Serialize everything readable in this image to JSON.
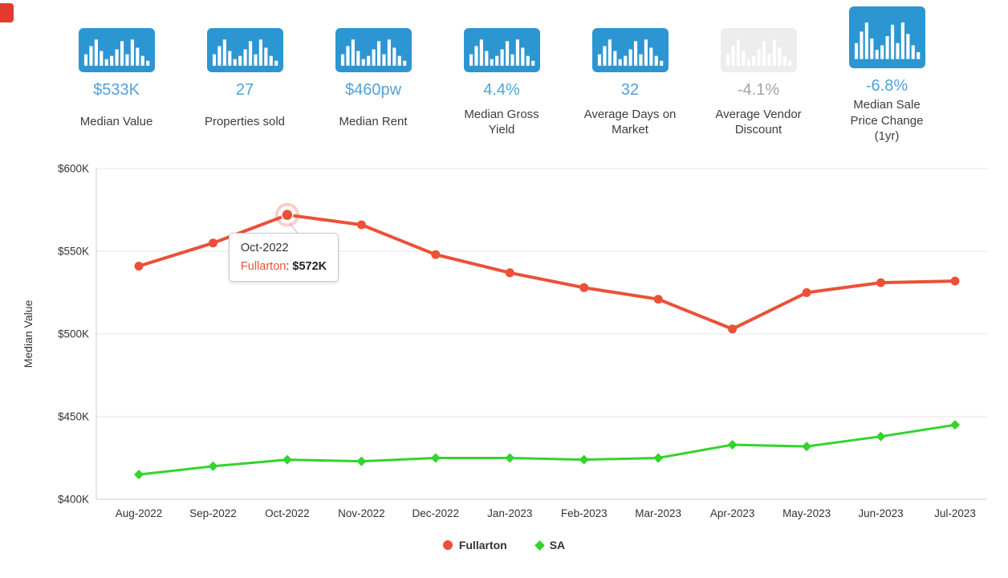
{
  "stats": [
    {
      "value": "$533K",
      "label": "Median Value"
    },
    {
      "value": "27",
      "label": "Properties sold"
    },
    {
      "value": "$460pw",
      "label": "Median Rent"
    },
    {
      "value": "4.4%",
      "label": "Median Gross Yield"
    },
    {
      "value": "32",
      "label": "Average Days on Market"
    },
    {
      "value": "-4.1%",
      "label": "Average Vendor Discount",
      "disabled": true
    },
    {
      "value": "-6.8%",
      "label": "Median Sale Price Change (1yr)"
    }
  ],
  "colors": {
    "icon_blue": "#2c96d2",
    "value_blue": "#50a3d9",
    "disabled_gray": "#ededed",
    "fullarton_red": "#ea5138",
    "sa_green": "#33d42c"
  },
  "chart_data": {
    "type": "line",
    "x": [
      "Aug-2022",
      "Sep-2022",
      "Oct-2022",
      "Nov-2022",
      "Dec-2022",
      "Jan-2023",
      "Feb-2023",
      "Mar-2023",
      "Apr-2023",
      "May-2023",
      "Jun-2023",
      "Jul-2023"
    ],
    "series": [
      {
        "name": "Fullarton",
        "color": "#ea5138",
        "marker": "circle",
        "values": [
          541,
          555,
          572,
          566,
          548,
          537,
          528,
          521,
          503,
          525,
          531,
          532
        ]
      },
      {
        "name": "SA",
        "color": "#33d42c",
        "marker": "diamond",
        "values": [
          415,
          420,
          424,
          423,
          425,
          425,
          424,
          425,
          433,
          432,
          438,
          445
        ]
      }
    ],
    "units": "thousands of dollars",
    "ylabel": "Median Value",
    "ylim": [
      400,
      600
    ],
    "yticks": [
      400,
      450,
      500,
      550,
      600
    ],
    "ytick_labels": [
      "$400K",
      "$450K",
      "$500K",
      "$550K",
      "$600K"
    ],
    "grid": "horizontal",
    "legend_position": "bottom",
    "tooltip": {
      "x_index": 2,
      "title": "Oct-2022",
      "series": "Fullarton",
      "separator": ": ",
      "value": "$572K"
    }
  }
}
